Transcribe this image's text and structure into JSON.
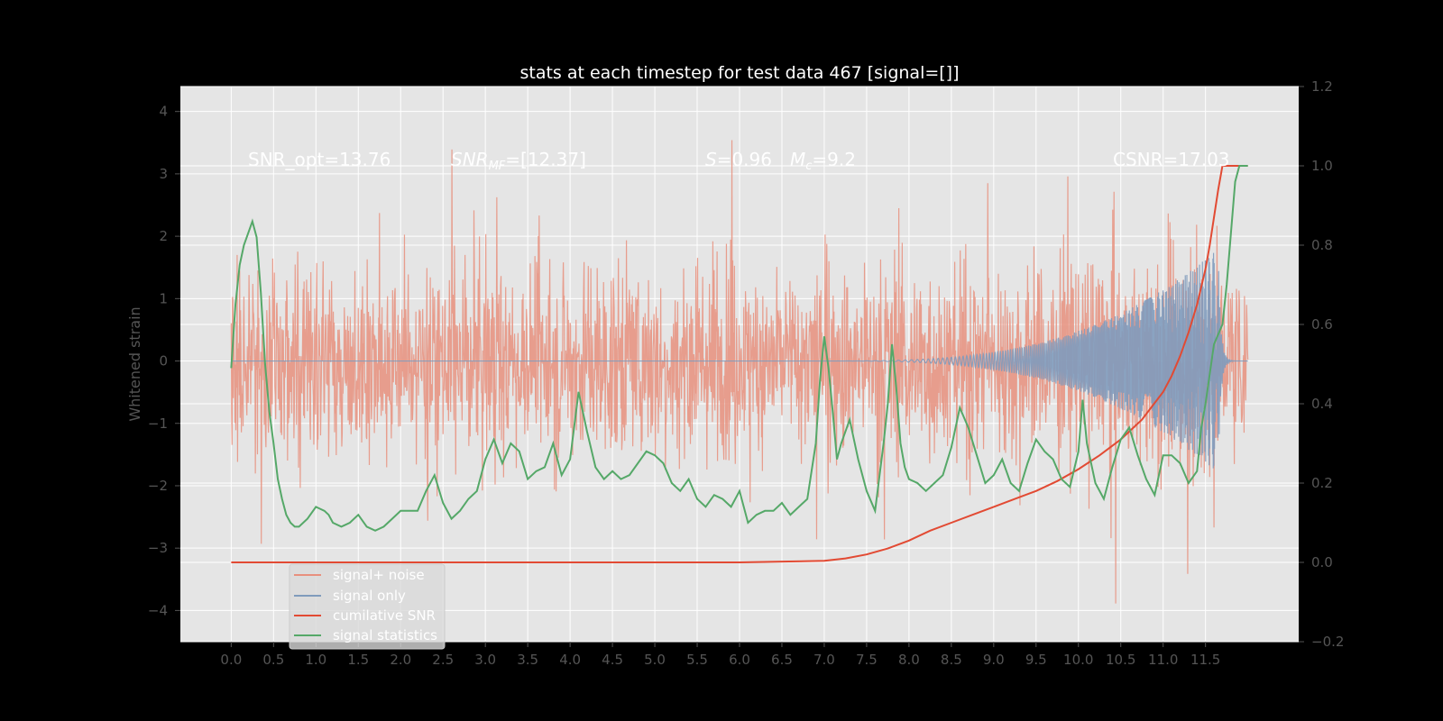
{
  "chart_data": {
    "type": "line",
    "title": "stats at each timestep for test data 467 [signal=[]]",
    "ylabel": "Whitened strain",
    "xlabel": "",
    "x_ticks": [
      "0.0",
      "0.5",
      "1.0",
      "1.5",
      "2.0",
      "2.5",
      "3.0",
      "3.5",
      "4.0",
      "4.5",
      "5.0",
      "5.5",
      "6.0",
      "6.5",
      "7.0",
      "7.5",
      "8.0",
      "8.5",
      "9.0",
      "9.5",
      "10.0",
      "10.5",
      "11.0",
      "11.5"
    ],
    "y_left_ticks": [
      "4",
      "3",
      "2",
      "1",
      "0",
      "−1",
      "−2",
      "−3",
      "−4"
    ],
    "y_right_ticks": [
      "1.2",
      "1.0",
      "0.8",
      "0.6",
      "0.4",
      "0.2",
      "0.0",
      "−0.2"
    ],
    "xlim": [
      -0.6,
      12.6
    ],
    "ylim_left": [
      -4.5,
      4.4
    ],
    "ylim_right": [
      -0.2,
      1.2
    ],
    "grid": true,
    "legend_placement": "lower-left",
    "annotations": {
      "snr_opt": "SNR_opt=13.76",
      "snr_mf_label": "SNR",
      "snr_mf_sub": "MF",
      "snr_mf_value": "=[12.37]",
      "s_label": "S",
      "s_value": "=0.96",
      "mc_label": "M",
      "mc_sub": "c",
      "mc_value": "=9.2",
      "csnr": "CSNR=17.03"
    },
    "series": [
      {
        "name": "signal+ noise",
        "axis": "left",
        "color": "#E8907E",
        "style": "dense noisy trace, mostly within about ±2 with spikes to about ±4",
        "typical_amplitude": 1.8,
        "max_excursion": 4.0
      },
      {
        "name": "signal only",
        "axis": "left",
        "color": "#7F9BBC",
        "style": "chirp oscillation that grows until merger, then rings down",
        "x_start": 7.0,
        "x_peak": 11.65,
        "x_end": 12.0,
        "peak_amplitude": 1.8
      },
      {
        "name": "cumilative SNR",
        "axis": "right",
        "color": "#E24A33",
        "x": [
          0.0,
          1.0,
          2.0,
          3.0,
          4.0,
          5.0,
          6.0,
          6.5,
          7.0,
          7.25,
          7.5,
          7.75,
          8.0,
          8.25,
          8.5,
          8.75,
          9.0,
          9.25,
          9.5,
          9.75,
          10.0,
          10.25,
          10.5,
          10.75,
          11.0,
          11.1,
          11.2,
          11.3,
          11.4,
          11.5,
          11.55,
          11.6,
          11.65,
          11.7,
          11.8,
          12.0
        ],
        "values": [
          0.0,
          0.0,
          0.0,
          0.0,
          0.0,
          0.0,
          0.0,
          0.002,
          0.004,
          0.01,
          0.02,
          0.035,
          0.055,
          0.08,
          0.1,
          0.12,
          0.14,
          0.16,
          0.18,
          0.205,
          0.235,
          0.27,
          0.31,
          0.36,
          0.43,
          0.47,
          0.52,
          0.58,
          0.65,
          0.74,
          0.8,
          0.87,
          0.94,
          1.0,
          1.0,
          1.0
        ]
      },
      {
        "name": "signal statistics",
        "axis": "right",
        "color": "#55A868",
        "x": [
          0.0,
          0.05,
          0.1,
          0.15,
          0.2,
          0.25,
          0.3,
          0.35,
          0.4,
          0.45,
          0.5,
          0.55,
          0.6,
          0.65,
          0.7,
          0.75,
          0.8,
          0.9,
          1.0,
          1.05,
          1.1,
          1.15,
          1.2,
          1.3,
          1.4,
          1.5,
          1.6,
          1.7,
          1.8,
          1.9,
          2.0,
          2.1,
          2.2,
          2.3,
          2.4,
          2.5,
          2.6,
          2.7,
          2.8,
          2.9,
          3.0,
          3.1,
          3.2,
          3.3,
          3.4,
          3.5,
          3.6,
          3.7,
          3.8,
          3.9,
          4.0,
          4.1,
          4.2,
          4.3,
          4.4,
          4.5,
          4.6,
          4.7,
          4.8,
          4.9,
          5.0,
          5.1,
          5.2,
          5.3,
          5.4,
          5.5,
          5.6,
          5.7,
          5.8,
          5.9,
          6.0,
          6.1,
          6.2,
          6.3,
          6.4,
          6.5,
          6.6,
          6.7,
          6.8,
          6.9,
          6.95,
          7.0,
          7.05,
          7.1,
          7.15,
          7.2,
          7.3,
          7.4,
          7.5,
          7.6,
          7.7,
          7.75,
          7.8,
          7.85,
          7.9,
          7.95,
          8.0,
          8.1,
          8.2,
          8.3,
          8.4,
          8.5,
          8.6,
          8.7,
          8.8,
          8.9,
          9.0,
          9.1,
          9.2,
          9.3,
          9.4,
          9.5,
          9.6,
          9.7,
          9.8,
          9.9,
          10.0,
          10.05,
          10.1,
          10.2,
          10.3,
          10.4,
          10.5,
          10.6,
          10.7,
          10.8,
          10.9,
          11.0,
          11.1,
          11.2,
          11.3,
          11.4,
          11.45,
          11.5,
          11.6,
          11.7,
          11.75,
          11.8,
          11.85,
          11.9,
          12.0
        ],
        "values": [
          0.49,
          0.65,
          0.75,
          0.8,
          0.83,
          0.86,
          0.82,
          0.68,
          0.5,
          0.38,
          0.3,
          0.21,
          0.16,
          0.12,
          0.1,
          0.09,
          0.09,
          0.11,
          0.14,
          0.135,
          0.13,
          0.12,
          0.1,
          0.09,
          0.1,
          0.12,
          0.09,
          0.08,
          0.09,
          0.11,
          0.13,
          0.13,
          0.13,
          0.18,
          0.22,
          0.15,
          0.11,
          0.13,
          0.16,
          0.18,
          0.26,
          0.31,
          0.25,
          0.3,
          0.28,
          0.21,
          0.23,
          0.24,
          0.3,
          0.22,
          0.26,
          0.43,
          0.33,
          0.24,
          0.21,
          0.23,
          0.21,
          0.22,
          0.25,
          0.28,
          0.27,
          0.25,
          0.2,
          0.18,
          0.21,
          0.16,
          0.14,
          0.17,
          0.16,
          0.14,
          0.18,
          0.1,
          0.12,
          0.13,
          0.13,
          0.15,
          0.12,
          0.14,
          0.16,
          0.3,
          0.46,
          0.57,
          0.49,
          0.38,
          0.26,
          0.3,
          0.36,
          0.26,
          0.18,
          0.13,
          0.3,
          0.4,
          0.55,
          0.44,
          0.3,
          0.24,
          0.21,
          0.2,
          0.18,
          0.2,
          0.22,
          0.29,
          0.39,
          0.34,
          0.27,
          0.2,
          0.22,
          0.26,
          0.2,
          0.18,
          0.25,
          0.31,
          0.28,
          0.26,
          0.21,
          0.19,
          0.28,
          0.41,
          0.3,
          0.2,
          0.16,
          0.24,
          0.31,
          0.34,
          0.27,
          0.21,
          0.17,
          0.27,
          0.27,
          0.25,
          0.2,
          0.23,
          0.34,
          0.4,
          0.55,
          0.6,
          0.7,
          0.83,
          0.96,
          1.0,
          1.0
        ]
      }
    ]
  }
}
